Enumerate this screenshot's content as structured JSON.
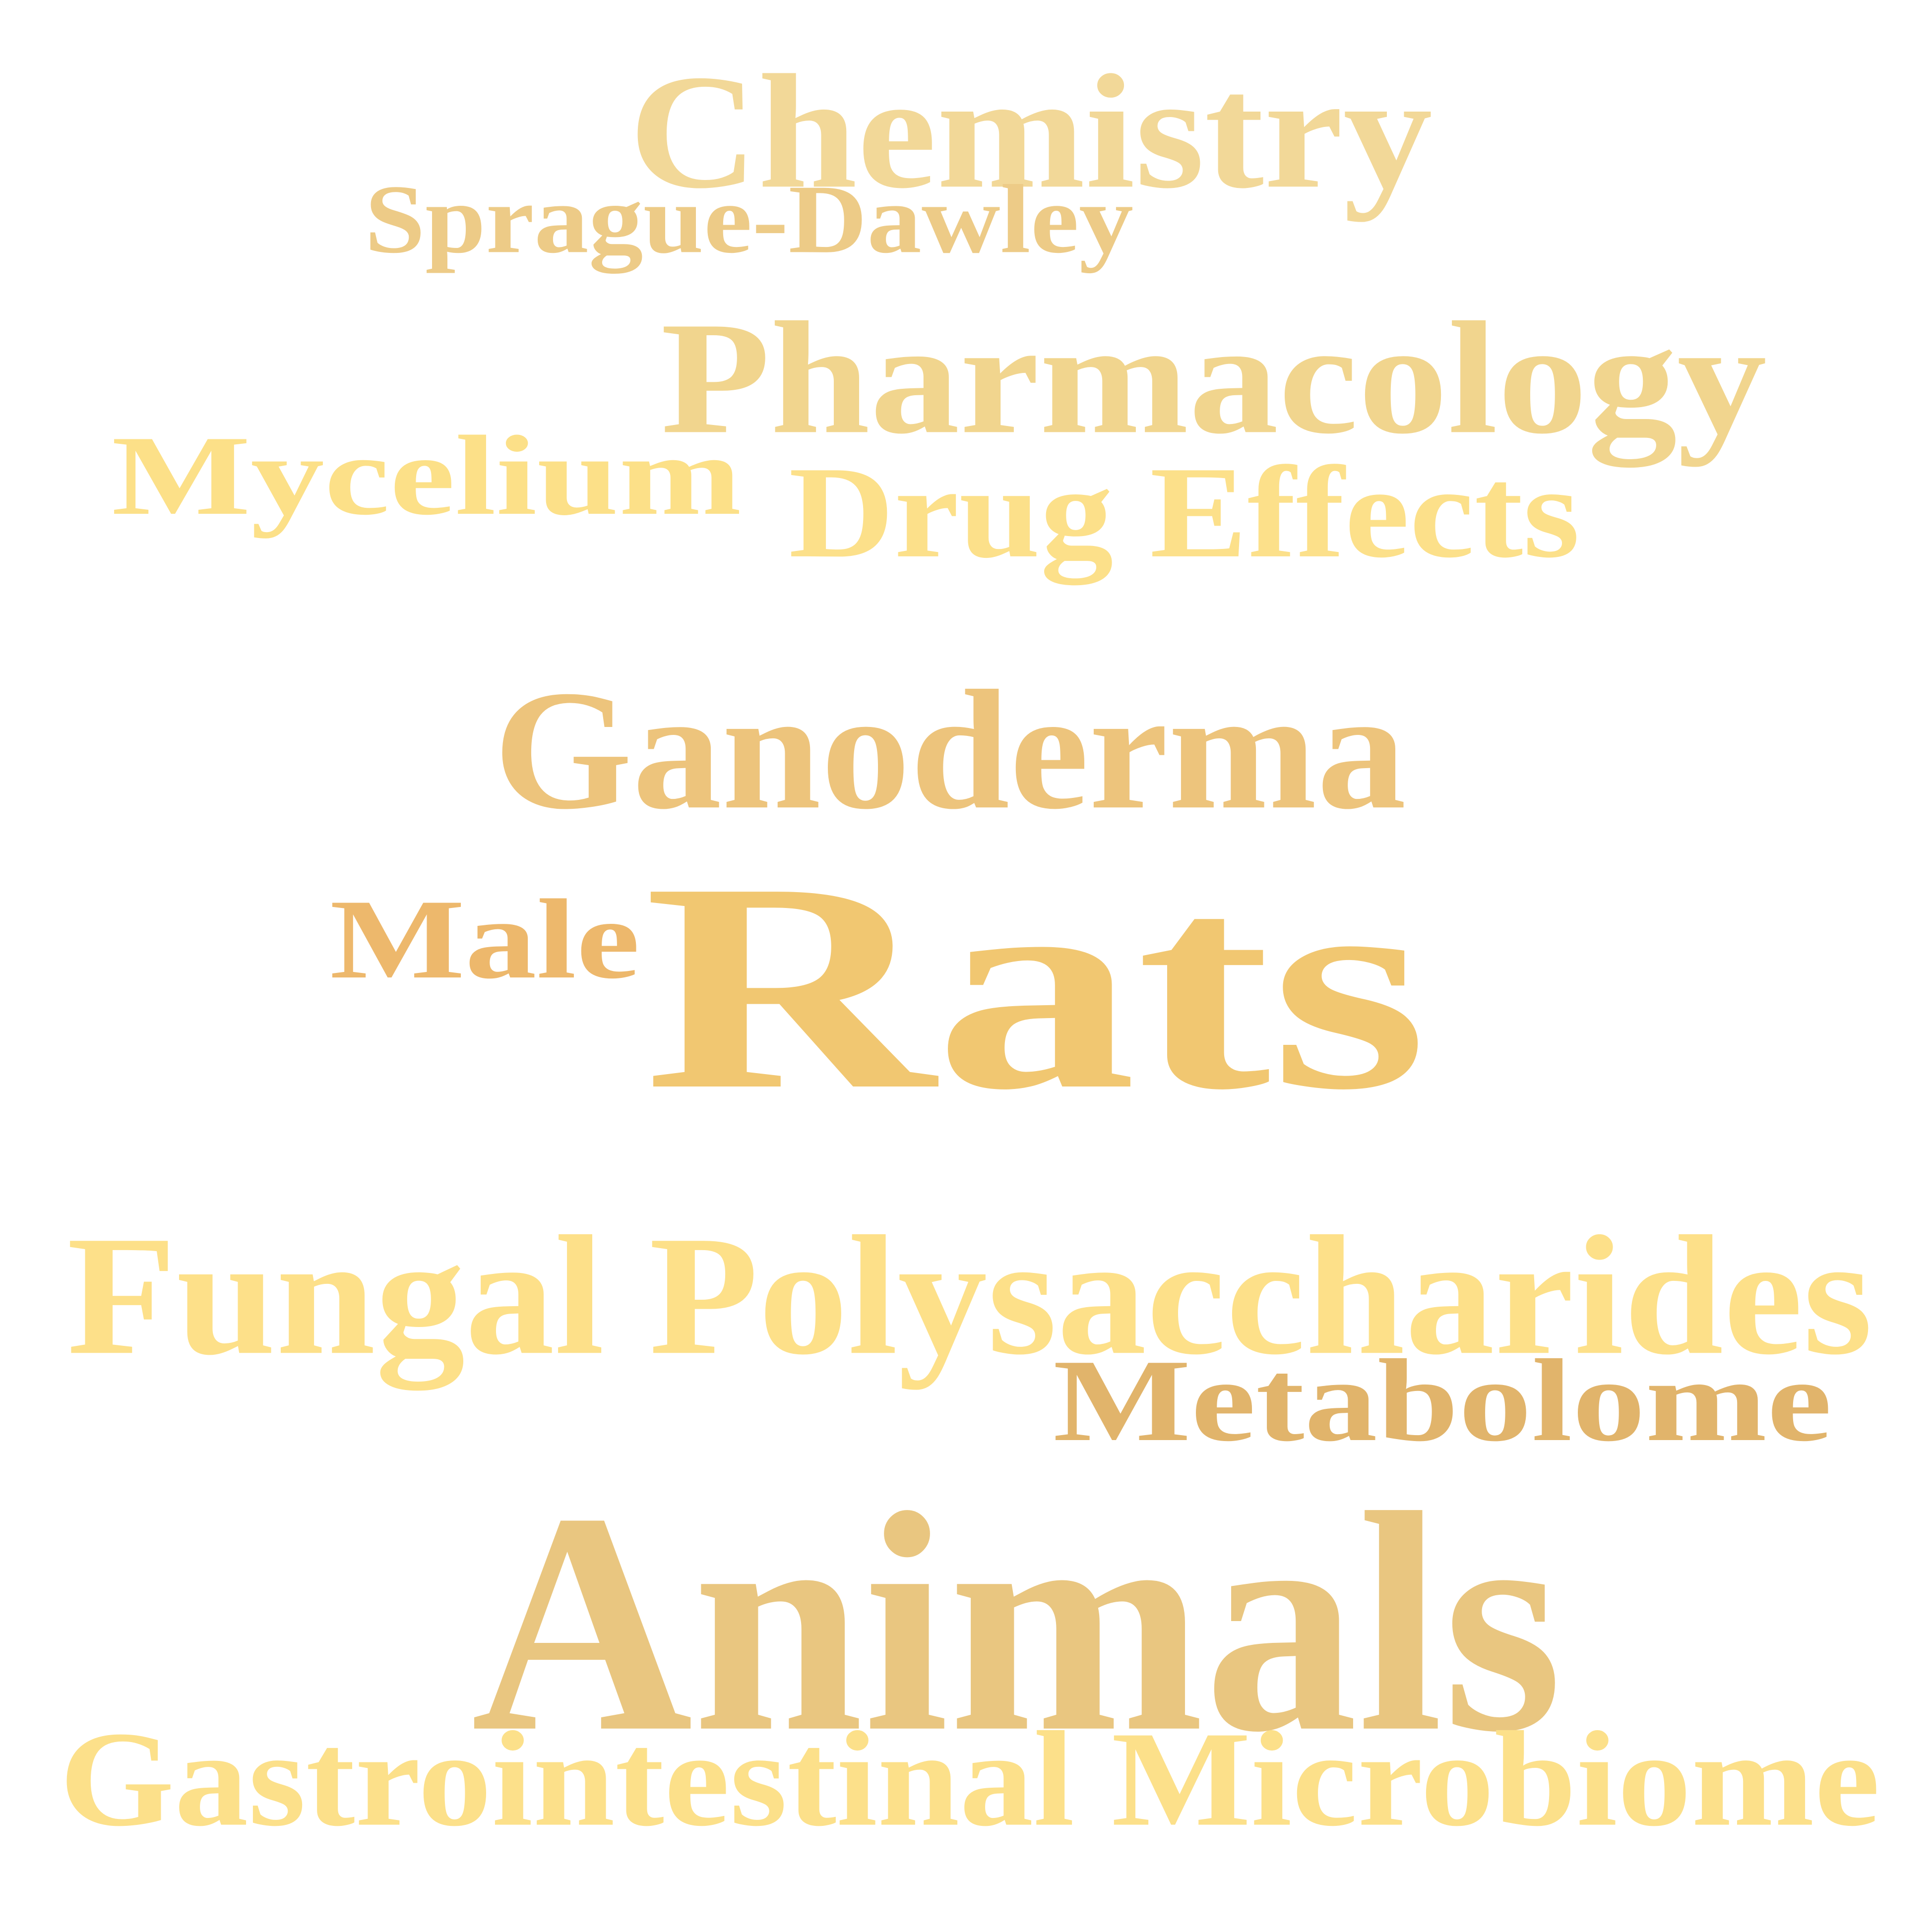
{
  "words": [
    {
      "text": "Chemistry",
      "color": "#F2D898"
    },
    {
      "text": "Sprague-Dawley",
      "color": "#EDCB87"
    },
    {
      "text": "Pharmacology",
      "color": "#F1D58E"
    },
    {
      "text": "Mycelium",
      "color": "#FCE088"
    },
    {
      "text": "Drug Effects",
      "color": "#FCE08A"
    },
    {
      "text": "Ganoderma",
      "color": "#EDC47C"
    },
    {
      "text": "Male",
      "color": "#EDB86C"
    },
    {
      "text": "Rats",
      "color": "#F1C771"
    },
    {
      "text": "Fungal Polysaccharides",
      "color": "#FDE089"
    },
    {
      "text": "Metabolome",
      "color": "#E1B46B"
    },
    {
      "text": "Animals",
      "color": "#E9C680"
    },
    {
      "text": "Gastrointestinal Microbiome",
      "color": "#FCE08A"
    }
  ]
}
